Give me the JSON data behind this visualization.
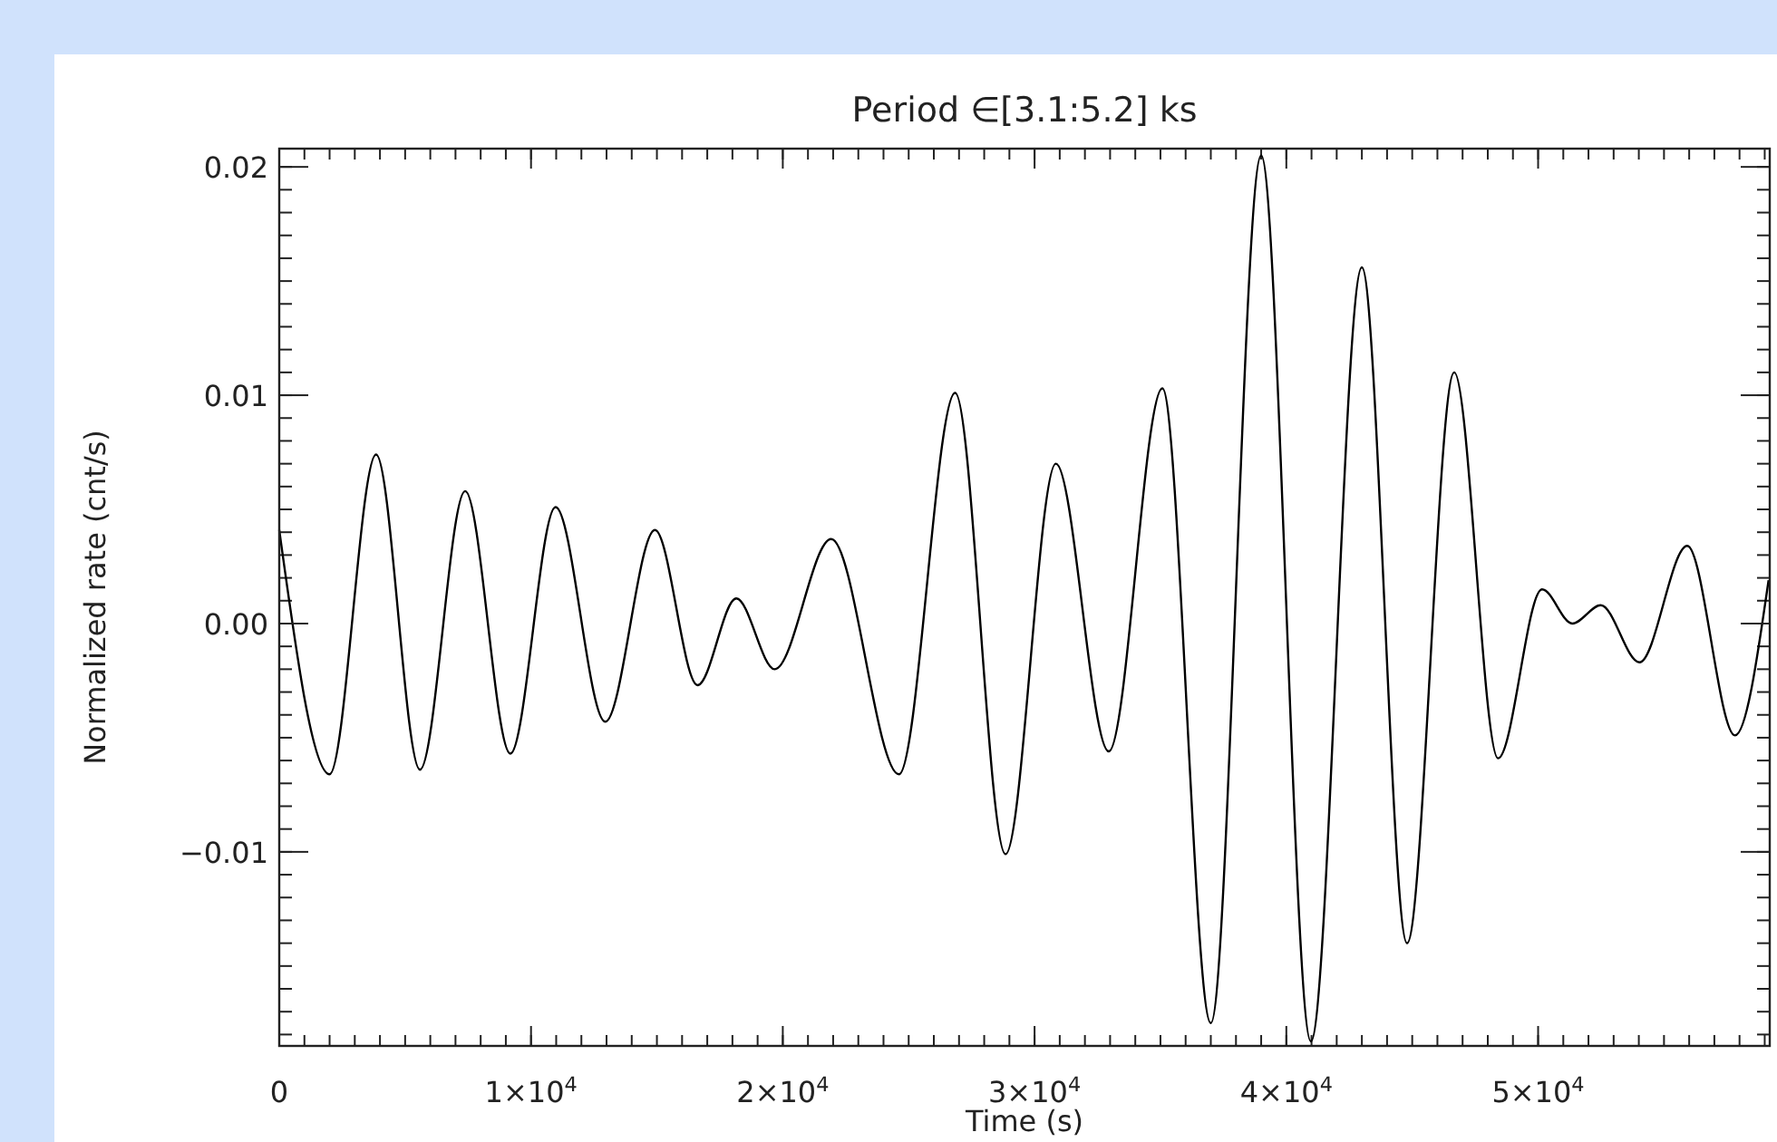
{
  "chart_data": {
    "type": "line",
    "title": "Period ∈[3.1:5.2] ks",
    "xlabel": "Time (s)",
    "ylabel": "Normalized rate (cnt/s)",
    "x": [
      0,
      2000,
      3846,
      5590,
      7385,
      9180,
      10974,
      12949,
      14923,
      16615,
      18154,
      19680,
      21923,
      24615,
      26846,
      28846,
      30846,
      32949,
      35077,
      37000,
      39000,
      40974,
      43000,
      44795,
      46667,
      48410,
      50154,
      51359,
      52487,
      54026,
      55923,
      57821,
      59154
    ],
    "series": [
      {
        "color": "#000000",
        "values": [
          0.0041,
          -0.0066,
          0.0074,
          -0.0064,
          0.0058,
          -0.0057,
          0.0051,
          -0.0043,
          0.0041,
          -0.0027,
          0.0011,
          -0.002,
          0.0037,
          -0.0066,
          0.0101,
          -0.0101,
          0.007,
          -0.0056,
          0.0103,
          -0.0175,
          0.0205,
          -0.0183,
          0.0156,
          -0.014,
          0.011,
          -0.0059,
          0.0015,
          0.0,
          0.0008,
          -0.0017,
          0.0034,
          -0.0049,
          0.0019
        ]
      }
    ],
    "xlim": [
      0,
      59200
    ],
    "ylim": [
      -0.0185,
      0.0208
    ],
    "xticks": [
      {
        "value": 0,
        "label": "0"
      },
      {
        "value": 10000,
        "label": "1×10$^{4}$"
      },
      {
        "value": 20000,
        "label": "2×10$^{4}$"
      },
      {
        "value": 30000,
        "label": "3×10$^{4}$"
      },
      {
        "value": 40000,
        "label": "4×10$^{4}$"
      },
      {
        "value": 50000,
        "label": "5×10$^{4}$"
      }
    ],
    "yticks": [
      {
        "value": -0.01,
        "label": "−0.01"
      },
      {
        "value": 0,
        "label": "0.00"
      },
      0.01,
      0.02
    ],
    "grid": false,
    "marker": "none",
    "line_style": "solid"
  }
}
